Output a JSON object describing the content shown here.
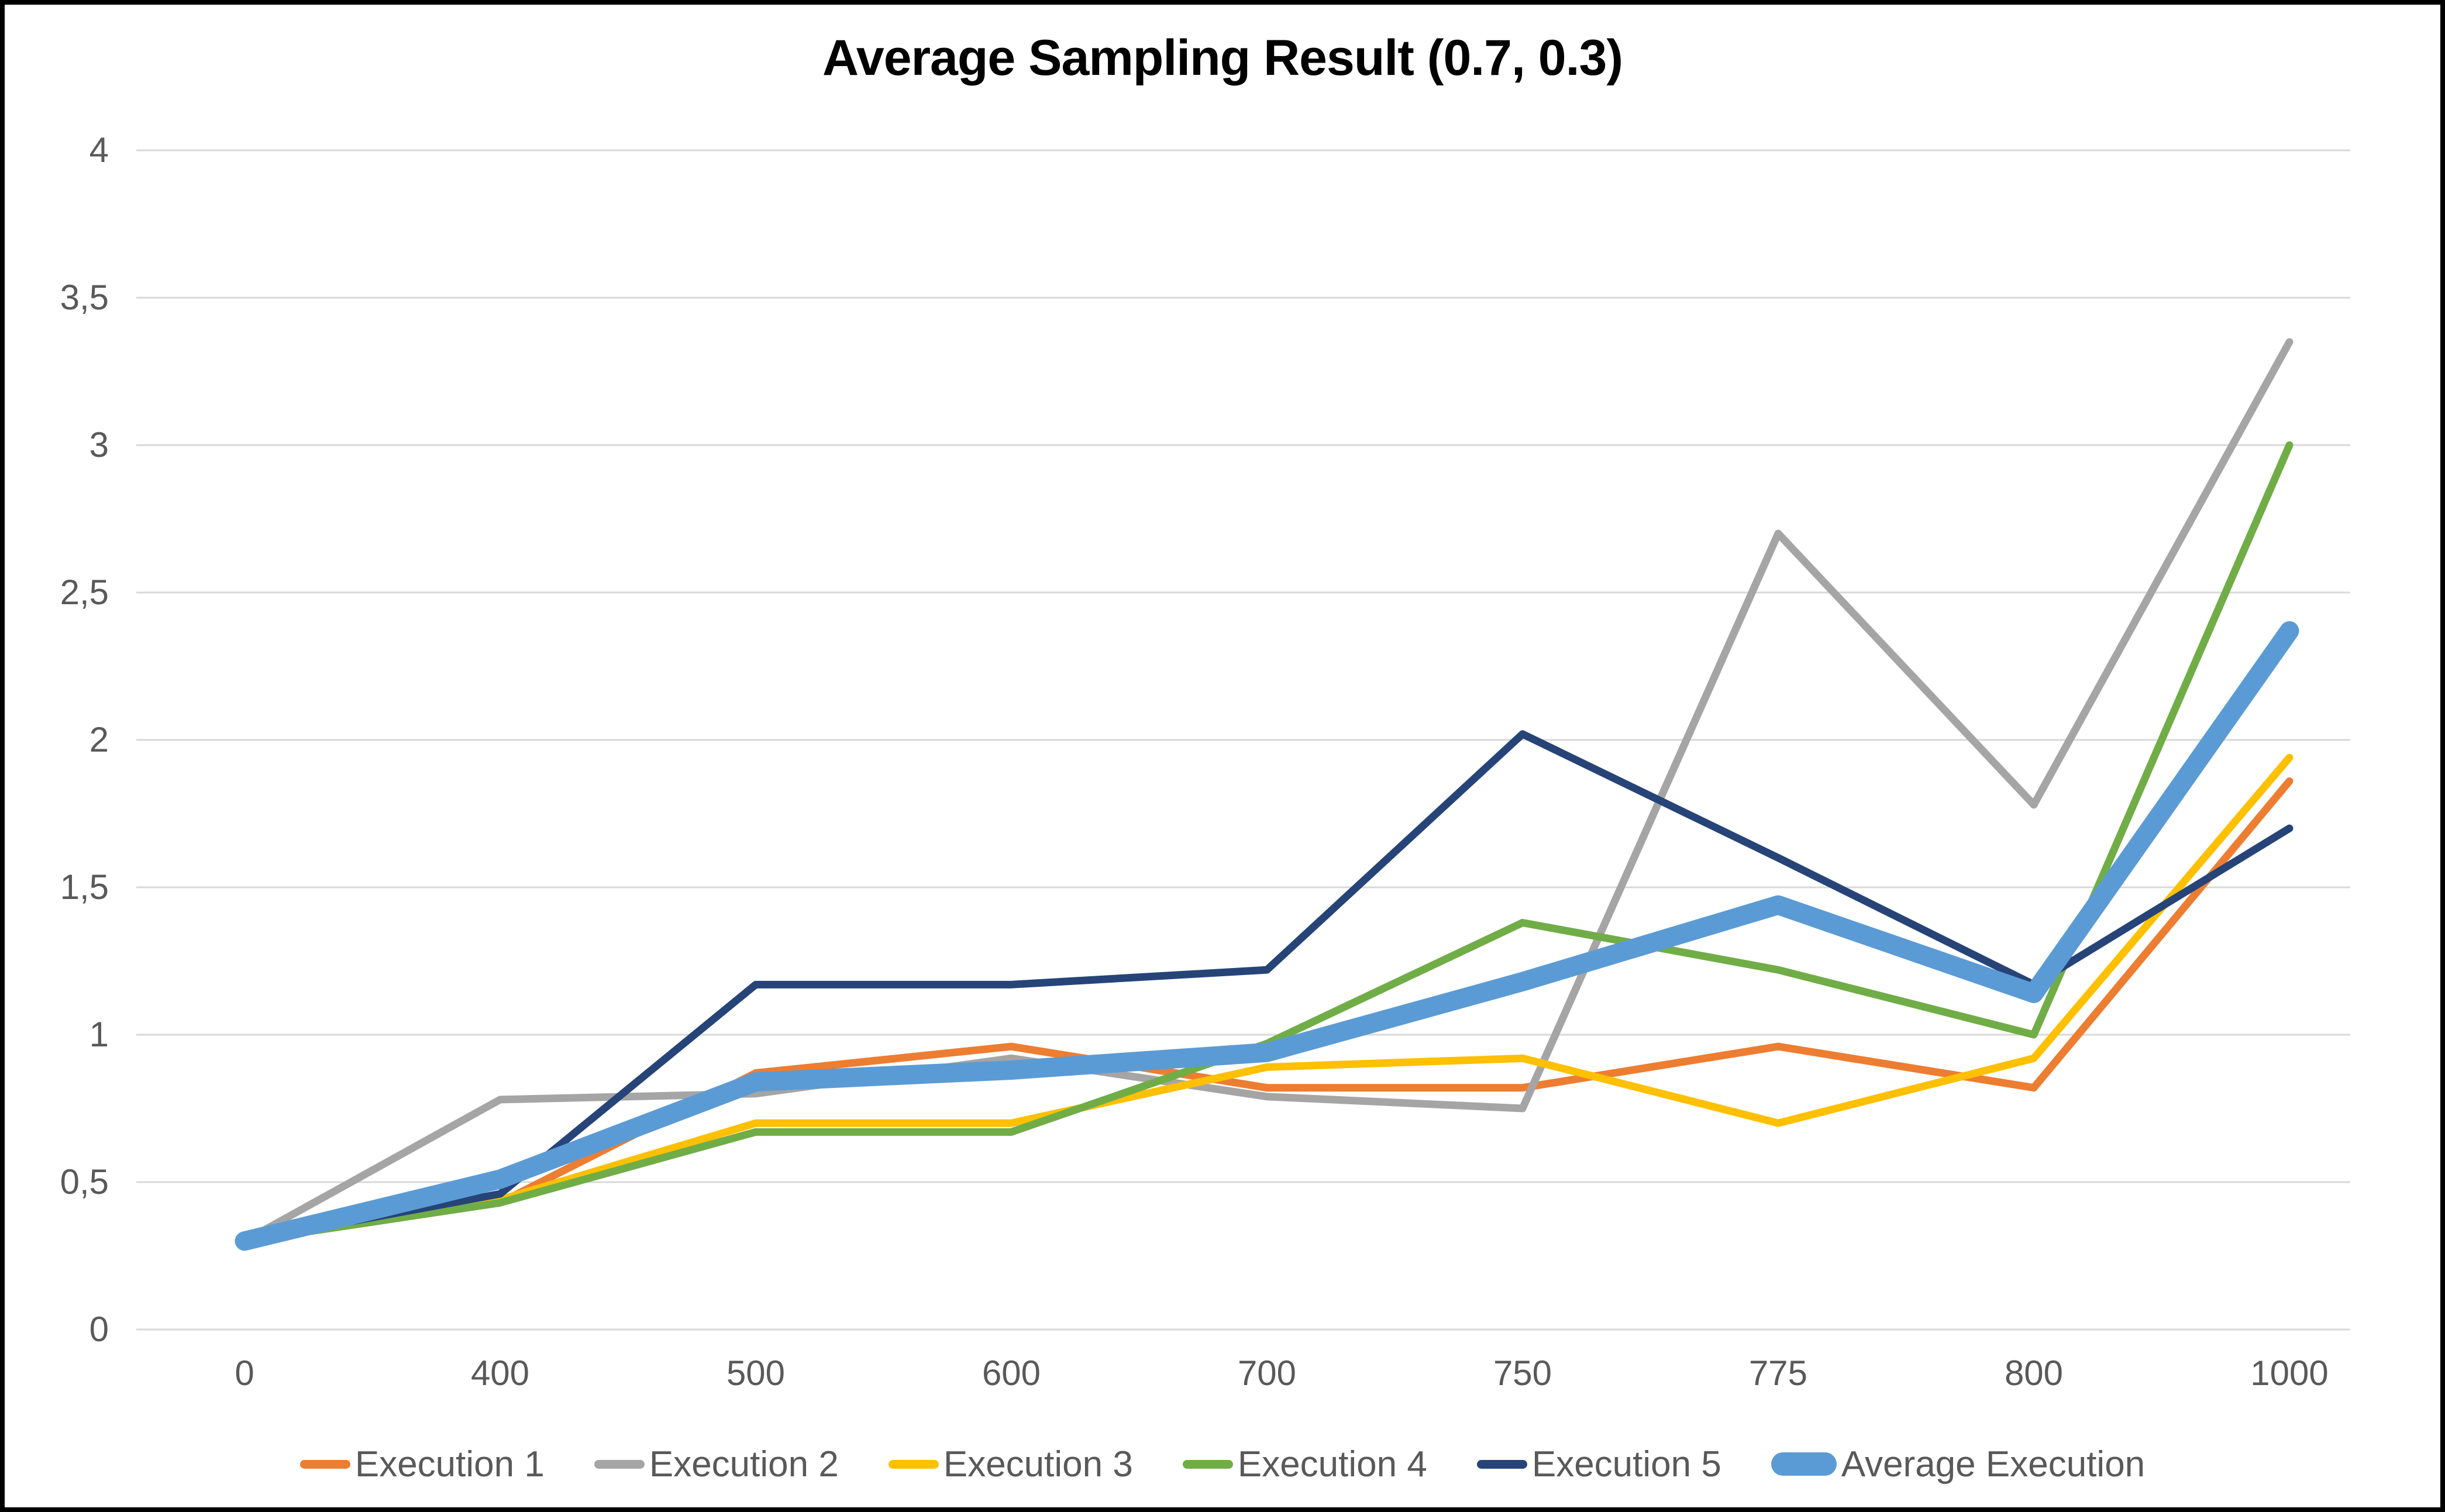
{
  "window": {
    "title": "Average Sampling Result (0.7, 0.3)"
  },
  "colors": {
    "background": "#FFFFFF",
    "border": "#000000",
    "gridline": "#D9D9D9",
    "axis_text": "#595959",
    "title_text": "#000000"
  },
  "chart_data": {
    "type": "line",
    "title": "Average Sampling Result (0.7, 0.3)",
    "xlabel": "",
    "ylabel": "",
    "grid": true,
    "legend_position": "bottom",
    "categories": [
      "0",
      "400",
      "500",
      "600",
      "700",
      "750",
      "775",
      "800",
      "1000"
    ],
    "y_axis": {
      "min": 0,
      "max": 4,
      "tick_step": 0.5,
      "tick_values": [
        0,
        0.5,
        1,
        1.5,
        2,
        2.5,
        3,
        3.5,
        4
      ],
      "tick_labels": [
        "0",
        "0,5",
        "1",
        "1,5",
        "2",
        "2,5",
        "3",
        "3,5",
        "4"
      ]
    },
    "series": [
      {
        "name": "Execution 1",
        "color": "#ED7D31",
        "thickness": "thin",
        "values": [
          0.3,
          0.43,
          0.87,
          0.96,
          0.82,
          0.82,
          0.96,
          0.82,
          1.86
        ]
      },
      {
        "name": "Execution 2",
        "color": "#A5A5A5",
        "thickness": "thin",
        "values": [
          0.3,
          0.78,
          0.8,
          0.92,
          0.79,
          0.75,
          2.7,
          1.78,
          3.35
        ]
      },
      {
        "name": "Execution 3",
        "color": "#FFC000",
        "thickness": "thin",
        "values": [
          0.3,
          0.44,
          0.7,
          0.7,
          0.89,
          0.92,
          0.7,
          0.92,
          1.94
        ]
      },
      {
        "name": "Execution 4",
        "color": "#70AD47",
        "thickness": "thin",
        "values": [
          0.3,
          0.43,
          0.67,
          0.67,
          0.97,
          1.38,
          1.22,
          1.0,
          3.0
        ]
      },
      {
        "name": "Execution 5",
        "color": "#264478",
        "thickness": "thin",
        "values": [
          0.3,
          0.46,
          1.17,
          1.17,
          1.22,
          2.02,
          1.6,
          1.17,
          1.7
        ]
      },
      {
        "name": "Average Execution",
        "color": "#5B9BD5",
        "thickness": "thick",
        "values": [
          0.3,
          0.51,
          0.84,
          0.88,
          0.94,
          1.18,
          1.44,
          1.14,
          2.37
        ]
      }
    ]
  }
}
